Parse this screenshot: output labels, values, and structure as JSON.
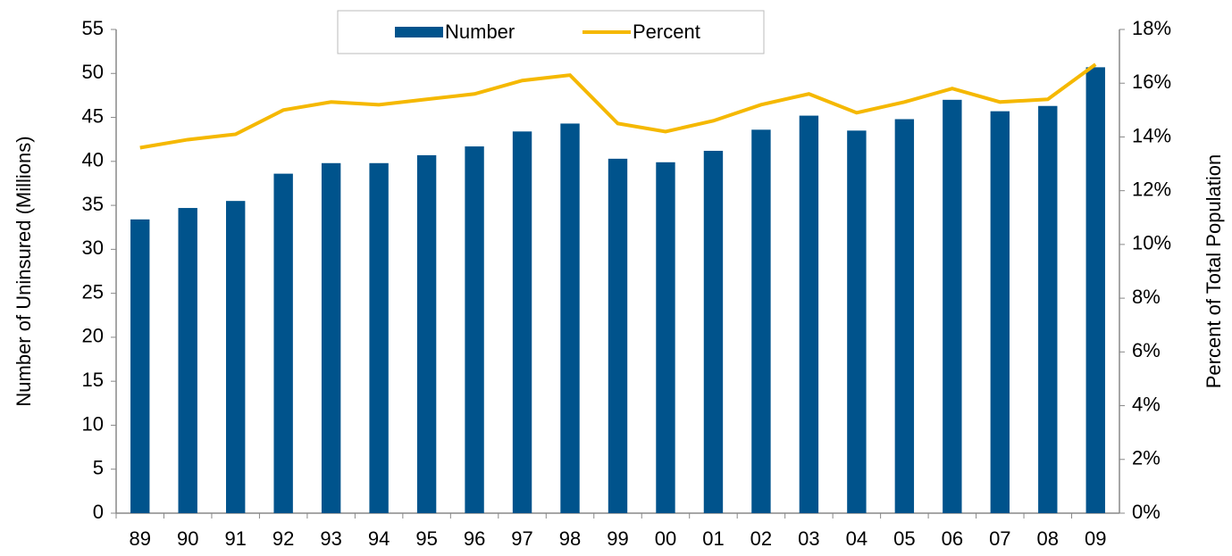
{
  "chart_data": {
    "type": "bar",
    "y_label": "Number of Uninsured (Millions)",
    "y2_label": "Percent of Total Population",
    "categories": [
      "89",
      "90",
      "91",
      "92",
      "93",
      "94",
      "95",
      "96",
      "97",
      "98",
      "99",
      "00",
      "01",
      "02",
      "03",
      "04",
      "05",
      "06",
      "07",
      "08",
      "09"
    ],
    "series": [
      {
        "name": "Number",
        "type": "bar",
        "color": "#00538c",
        "values": [
          33.4,
          34.7,
          35.5,
          38.6,
          39.8,
          39.8,
          40.7,
          41.7,
          43.4,
          44.3,
          40.3,
          39.9,
          41.2,
          43.6,
          45.2,
          43.5,
          44.8,
          47.0,
          45.7,
          46.3,
          50.7
        ]
      },
      {
        "name": "Percent",
        "type": "line",
        "axis": "y2",
        "color": "#f5b800",
        "values": [
          13.6,
          13.9,
          14.1,
          15.0,
          15.3,
          15.2,
          15.4,
          15.6,
          16.1,
          16.3,
          14.5,
          14.2,
          14.6,
          15.2,
          15.6,
          14.9,
          15.3,
          15.8,
          15.3,
          15.4,
          16.7
        ]
      }
    ],
    "ylim": [
      0,
      55
    ],
    "yticks": [
      0,
      5,
      10,
      15,
      20,
      25,
      30,
      35,
      40,
      45,
      50,
      55
    ],
    "y2lim": [
      0,
      18
    ],
    "y2ticks": [
      {
        "value": 0,
        "label": "0%"
      },
      {
        "value": 2,
        "label": "2%"
      },
      {
        "value": 4,
        "label": "4%"
      },
      {
        "value": 6,
        "label": "6%"
      },
      {
        "value": 8,
        "label": "8%"
      },
      {
        "value": 10,
        "label": "10%"
      },
      {
        "value": 12,
        "label": "12%"
      },
      {
        "value": 14,
        "label": "14%"
      },
      {
        "value": 16,
        "label": "16%"
      },
      {
        "value": 18,
        "label": "18%"
      }
    ],
    "legend": "top"
  }
}
